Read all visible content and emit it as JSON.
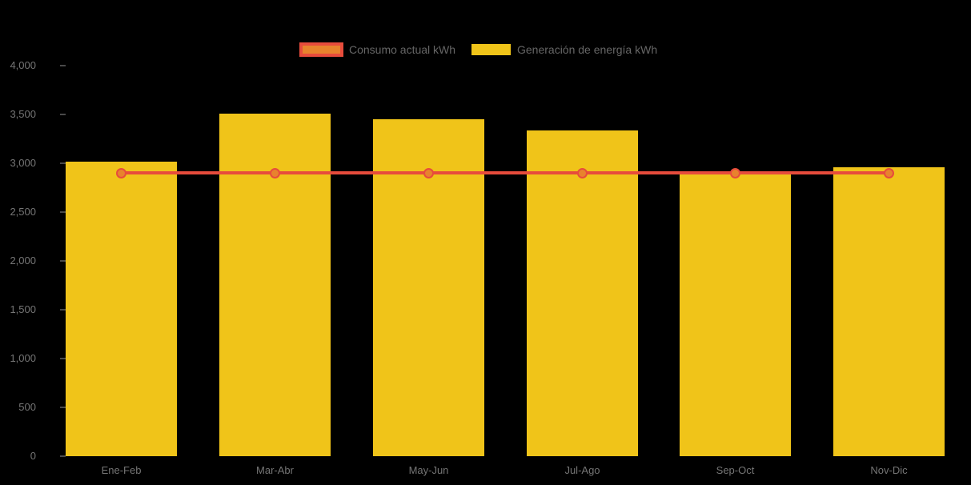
{
  "colors": {
    "background": "#000000",
    "bar_yellow": "#F0C419",
    "line_red": "#E74C3C",
    "marker_orange": "#E8832D",
    "axis_text": "#757575",
    "legend_text": "#666666",
    "tick_mark": "#4a4a4a"
  },
  "legend": {
    "position": "top-center",
    "items": [
      {
        "label": "Consumo actual kWh",
        "swatch": "line-swatch"
      },
      {
        "label": "Generación de energía kWh",
        "swatch": "bar-swatch"
      }
    ]
  },
  "chart_data": {
    "type": "bar",
    "title": "",
    "xlabel": "",
    "ylabel": "",
    "categories": [
      "Ene-Feb",
      "Mar-Abr",
      "May-Jun",
      "Jul-Ago",
      "Sep-Oct",
      "Nov-Dic"
    ],
    "series": [
      {
        "name": "Consumo actual kWh",
        "type": "line",
        "color": "#E74C3C",
        "marker_color": "#E8832D",
        "values": [
          2900,
          2900,
          2900,
          2900,
          2900,
          2900
        ]
      },
      {
        "name": "Generación de energía kWh",
        "type": "bar",
        "color": "#F0C419",
        "values": [
          3020,
          3510,
          3450,
          3340,
          2890,
          2960
        ]
      }
    ],
    "ylim": [
      0,
      4000
    ],
    "ytick_step": 500,
    "ytick_labels": [
      "0",
      "500",
      "1,000",
      "1,500",
      "2,000",
      "2,500",
      "3,000",
      "3,500",
      "4,000"
    ],
    "grid": false,
    "legend_position": "top-center"
  }
}
